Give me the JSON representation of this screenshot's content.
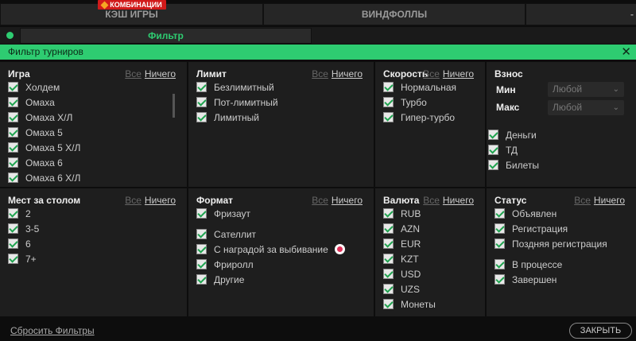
{
  "tabs": [
    {
      "label": "КЭШ ИГРЫ"
    },
    {
      "label": "ВИНДФОЛЛЫ"
    },
    {
      "label": "-"
    }
  ],
  "badge": "КОМБИНАЦИИ",
  "filter_button": "Фильтр",
  "header": {
    "title": "Фильтр турниров",
    "close": "✕"
  },
  "all_label": "Все",
  "none_label": "Ничего",
  "sections": {
    "game": {
      "title": "Игра",
      "items": [
        "Холдем",
        "Омаха",
        "Омаха Х/Л",
        "Омаха 5",
        "Омаха 5 Х/Л",
        "Омаха 6",
        "Омаха 6 Х/Л"
      ]
    },
    "limit": {
      "title": "Лимит",
      "items": [
        "Безлимитный",
        "Пот-лимитный",
        "Лимитный"
      ]
    },
    "speed": {
      "title": "Скорость",
      "items": [
        "Нормальная",
        "Турбо",
        "Гипер-турбо"
      ]
    },
    "buyin": {
      "title": "Взнос",
      "min_label": "Мин",
      "max_label": "Макс",
      "min_value": "Любой",
      "max_value": "Любой",
      "items": [
        "Деньги",
        "ТД",
        "Билеты"
      ]
    },
    "seats": {
      "title": "Мест за столом",
      "items": [
        "2",
        "3-5",
        "6",
        "7+"
      ]
    },
    "format": {
      "title": "Формат",
      "items": [
        "Фризаут",
        "Сателлит",
        "С наградой за выбивание",
        "Фриролл",
        "Другие"
      ]
    },
    "currency": {
      "title": "Валюта",
      "items": [
        "RUB",
        "AZN",
        "EUR",
        "KZT",
        "USD",
        "UZS",
        "Монеты"
      ]
    },
    "status": {
      "title": "Статус",
      "items": [
        "Объявлен",
        "Регистрация",
        "Поздняя регистрация",
        "В процессе",
        "Завершен"
      ]
    }
  },
  "footer": {
    "reset": "Сбросить Фильтры",
    "close": "ЗАКРЫТЬ"
  },
  "colors": {
    "accent": "#2ecc71",
    "badge": "#d11a1a"
  }
}
